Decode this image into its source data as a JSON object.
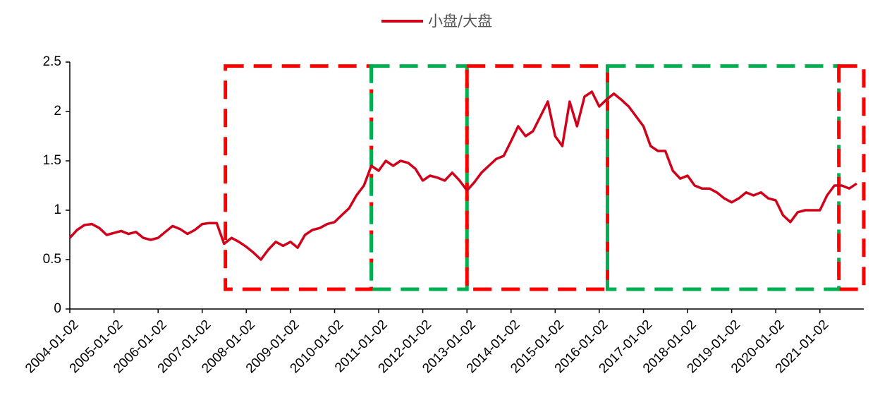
{
  "chart_data": {
    "type": "line",
    "x": [
      "2004-01-02",
      "2004-03-02",
      "2004-05-02",
      "2004-07-02",
      "2004-09-02",
      "2004-11-02",
      "2005-01-02",
      "2005-03-02",
      "2005-05-02",
      "2005-07-02",
      "2005-09-02",
      "2005-11-02",
      "2006-01-02",
      "2006-03-02",
      "2006-05-02",
      "2006-07-02",
      "2006-09-02",
      "2006-11-02",
      "2007-01-02",
      "2007-03-02",
      "2007-05-02",
      "2007-07-02",
      "2007-09-02",
      "2007-11-02",
      "2008-01-02",
      "2008-03-02",
      "2008-05-02",
      "2008-07-02",
      "2008-09-02",
      "2008-11-02",
      "2009-01-02",
      "2009-03-02",
      "2009-05-02",
      "2009-07-02",
      "2009-09-02",
      "2009-11-02",
      "2010-01-02",
      "2010-03-02",
      "2010-05-02",
      "2010-07-02",
      "2010-09-02",
      "2010-11-02",
      "2011-01-02",
      "2011-03-02",
      "2011-05-02",
      "2011-07-02",
      "2011-09-02",
      "2011-11-02",
      "2012-01-02",
      "2012-03-02",
      "2012-05-02",
      "2012-07-02",
      "2012-09-02",
      "2012-11-02",
      "2013-01-02",
      "2013-03-02",
      "2013-05-02",
      "2013-07-02",
      "2013-09-02",
      "2013-11-02",
      "2014-01-02",
      "2014-03-02",
      "2014-05-02",
      "2014-07-02",
      "2014-09-02",
      "2014-11-02",
      "2015-01-02",
      "2015-03-02",
      "2015-05-02",
      "2015-07-02",
      "2015-09-02",
      "2015-11-02",
      "2016-01-02",
      "2016-03-02",
      "2016-05-02",
      "2016-07-02",
      "2016-09-02",
      "2016-11-02",
      "2017-01-02",
      "2017-03-02",
      "2017-05-02",
      "2017-07-02",
      "2017-09-02",
      "2017-11-02",
      "2018-01-02",
      "2018-03-02",
      "2018-05-02",
      "2018-07-02",
      "2018-09-02",
      "2018-11-02",
      "2019-01-02",
      "2019-03-02",
      "2019-05-02",
      "2019-07-02",
      "2019-09-02",
      "2019-11-02",
      "2020-01-02",
      "2020-03-02",
      "2020-05-02",
      "2020-07-02",
      "2020-09-02",
      "2020-11-02",
      "2021-01-02",
      "2021-03-02",
      "2021-05-02",
      "2021-07-02",
      "2021-09-02",
      "2021-11-02"
    ],
    "series": [
      {
        "name": "小盘/大盘",
        "color": "#d0021b",
        "values": [
          0.72,
          0.8,
          0.85,
          0.86,
          0.82,
          0.75,
          0.77,
          0.79,
          0.76,
          0.78,
          0.72,
          0.7,
          0.72,
          0.78,
          0.84,
          0.81,
          0.76,
          0.8,
          0.86,
          0.87,
          0.87,
          0.66,
          0.72,
          0.68,
          0.63,
          0.57,
          0.5,
          0.6,
          0.68,
          0.64,
          0.68,
          0.62,
          0.75,
          0.8,
          0.82,
          0.86,
          0.88,
          0.95,
          1.02,
          1.15,
          1.25,
          1.45,
          1.4,
          1.5,
          1.45,
          1.5,
          1.48,
          1.42,
          1.3,
          1.35,
          1.33,
          1.3,
          1.38,
          1.3,
          1.2,
          1.28,
          1.38,
          1.45,
          1.52,
          1.55,
          1.7,
          1.85,
          1.75,
          1.8,
          1.95,
          2.1,
          1.75,
          1.65,
          2.1,
          1.85,
          2.15,
          2.2,
          2.05,
          2.12,
          2.18,
          2.12,
          2.05,
          1.95,
          1.85,
          1.65,
          1.6,
          1.6,
          1.4,
          1.32,
          1.35,
          1.25,
          1.22,
          1.22,
          1.18,
          1.12,
          1.08,
          1.12,
          1.18,
          1.15,
          1.18,
          1.12,
          1.1,
          0.95,
          0.88,
          0.98,
          1.0,
          1.0,
          1.0,
          1.15,
          1.25,
          1.25,
          1.22,
          1.27
        ]
      }
    ],
    "xlim": [
      "2004-01-02",
      "2021-12-31"
    ],
    "xticks": [
      "2004-01-02",
      "2005-01-02",
      "2006-01-02",
      "2007-01-02",
      "2008-01-02",
      "2009-01-02",
      "2010-01-02",
      "2011-01-02",
      "2012-01-02",
      "2013-01-02",
      "2014-01-02",
      "2015-01-02",
      "2016-01-02",
      "2017-01-02",
      "2018-01-02",
      "2019-01-02",
      "2020-01-02",
      "2021-01-02"
    ],
    "ylim": [
      0,
      2.5
    ],
    "yticks": [
      0,
      0.5,
      1,
      1.5,
      2,
      2.5
    ],
    "legend": "top",
    "regions": [
      {
        "x": [
          "2007-07-13",
          "2010-11-02"
        ],
        "y": [
          0.2,
          2.46
        ],
        "color": "#ff0000"
      },
      {
        "x": [
          "2010-11-02",
          "2013-01-02"
        ],
        "y": [
          0.2,
          2.46
        ],
        "color": "#00b050"
      },
      {
        "x": [
          "2013-01-02",
          "2016-03-10"
        ],
        "y": [
          0.2,
          2.46
        ],
        "color": "#ff0000"
      },
      {
        "x": [
          "2016-03-10",
          "2021-06-08"
        ],
        "y": [
          0.2,
          2.46
        ],
        "color": "#00b050"
      },
      {
        "x": [
          "2021-06-08",
          "2021-12-31"
        ],
        "y": [
          0.2,
          2.46
        ],
        "color": "#ff0000"
      }
    ]
  }
}
